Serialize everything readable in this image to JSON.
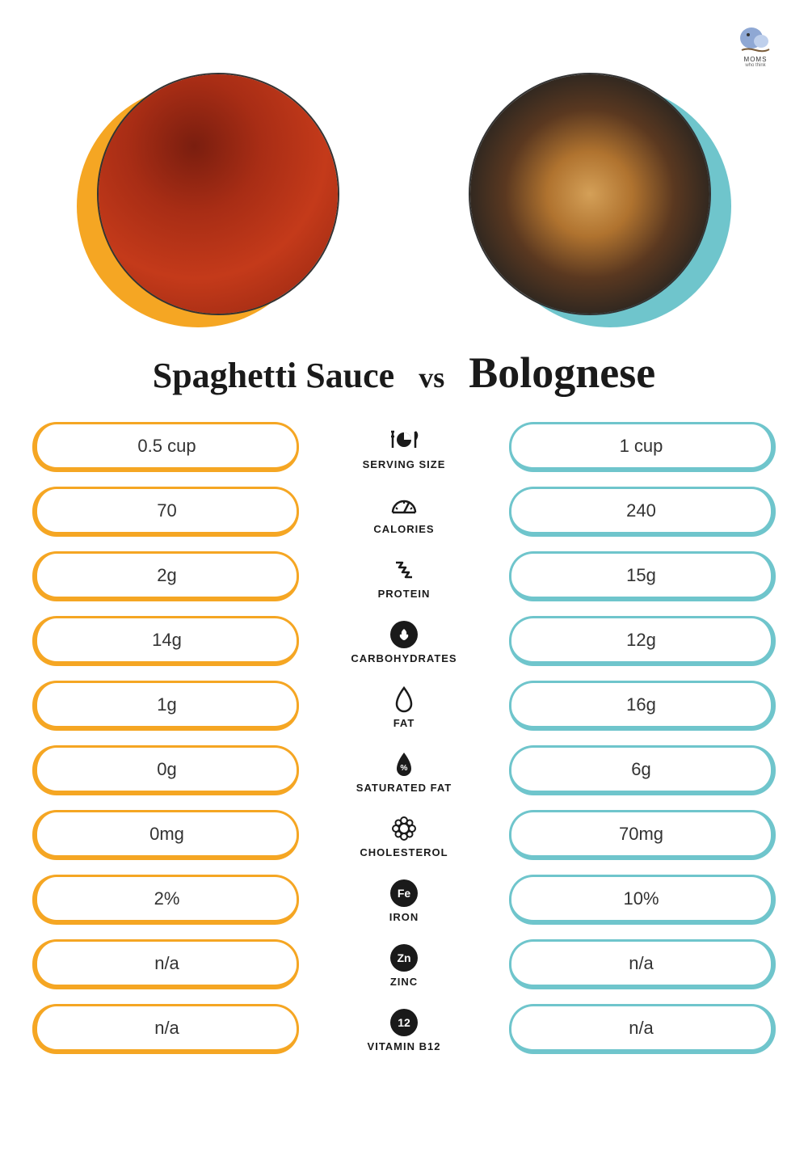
{
  "logo": {
    "line1": "MOMS",
    "line2": "who think"
  },
  "titles": {
    "left": "Spaghetti Sauce",
    "vs": "vs",
    "right": "Bolognese"
  },
  "accent_colors": {
    "left": "#f5a623",
    "right": "#6fc5cc"
  },
  "rows": [
    {
      "label": "SERVING SIZE",
      "left": "0.5 cup",
      "right": "1 cup",
      "icon": "serving"
    },
    {
      "label": "CALORIES",
      "left": "70",
      "right": "240",
      "icon": "calories"
    },
    {
      "label": "PROTEIN",
      "left": "2g",
      "right": "15g",
      "icon": "protein"
    },
    {
      "label": "CARBOHYDRATES",
      "left": "14g",
      "right": "12g",
      "icon": "carbs"
    },
    {
      "label": "FAT",
      "left": "1g",
      "right": "16g",
      "icon": "fat"
    },
    {
      "label": "SATURATED FAT",
      "left": "0g",
      "right": "6g",
      "icon": "satfat"
    },
    {
      "label": "CHOLESTEROL",
      "left": "0mg",
      "right": "70mg",
      "icon": "cholesterol"
    },
    {
      "label": "IRON",
      "left": "2%",
      "right": "10%",
      "icon": "badge",
      "badge": "Fe"
    },
    {
      "label": "ZINC",
      "left": "n/a",
      "right": "n/a",
      "icon": "badge",
      "badge": "Zn"
    },
    {
      "label": "VITAMIN B12",
      "left": "n/a",
      "right": "n/a",
      "icon": "badge",
      "badge": "12"
    }
  ]
}
